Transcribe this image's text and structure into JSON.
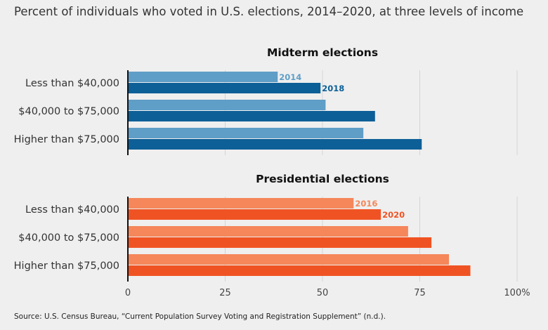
{
  "subtitle": "Percent of individuals who voted in U.S. elections, 2014–2020, at three levels of income",
  "source": "Source: U.S. Census Bureau, “Current Population Survey Voting and Registration Supplement” (n.d.).",
  "colors": {
    "midterm_light": "#5f9ec7",
    "midterm_dark": "#0d5f97",
    "pres_light": "#f5875a",
    "pres_dark": "#f05323",
    "grid": "#d4d4d4",
    "axis": "#111111"
  },
  "chart_data": [
    {
      "type": "bar",
      "orientation": "horizontal",
      "title": "Midterm elections",
      "categories": [
        "Less than $40,000",
        "$40,000 to $75,000",
        "Higher than $75,000"
      ],
      "series": [
        {
          "name": "2014",
          "values": [
            38.5,
            50.8,
            60.5
          ]
        },
        {
          "name": "2018",
          "values": [
            49.5,
            63.5,
            75.5
          ]
        }
      ],
      "xlim": [
        0,
        100
      ],
      "grid": true
    },
    {
      "type": "bar",
      "orientation": "horizontal",
      "title": "Presidential elections",
      "categories": [
        "Less than $40,000",
        "$40,000 to $75,000",
        "Higher than $75,000"
      ],
      "series": [
        {
          "name": "2016",
          "values": [
            58.0,
            72.0,
            82.5
          ]
        },
        {
          "name": "2020",
          "values": [
            65.0,
            78.0,
            88.0
          ]
        }
      ],
      "xlim": [
        0,
        100
      ],
      "grid": true
    }
  ],
  "x_ticks": [
    {
      "value": 0,
      "label": "0"
    },
    {
      "value": 25,
      "label": "25"
    },
    {
      "value": 50,
      "label": "50"
    },
    {
      "value": 75,
      "label": "75"
    },
    {
      "value": 100,
      "label": "100%"
    }
  ]
}
